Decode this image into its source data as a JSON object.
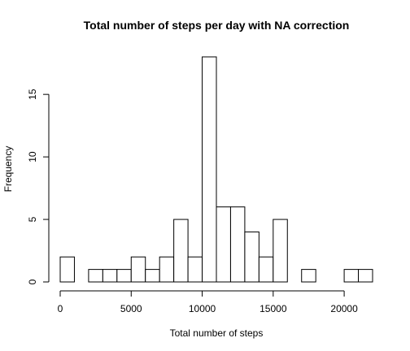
{
  "chart_data": {
    "type": "bar",
    "title": "Total number of steps per day with NA correction",
    "xlabel": "Total number of steps",
    "ylabel": "Frequency",
    "bin_width": 1000,
    "bin_start": 0,
    "values": [
      2,
      0,
      1,
      1,
      1,
      2,
      1,
      2,
      5,
      2,
      18,
      6,
      6,
      4,
      2,
      5,
      0,
      1,
      0,
      0,
      1,
      1
    ],
    "xlim": [
      0,
      22000
    ],
    "ylim": [
      0,
      18
    ],
    "x_ticks": [
      0,
      5000,
      10000,
      15000,
      20000
    ],
    "y_ticks": [
      0,
      5,
      10,
      15
    ],
    "grid": false,
    "bar_color": "#ffffff",
    "edge_color": "#000000"
  }
}
